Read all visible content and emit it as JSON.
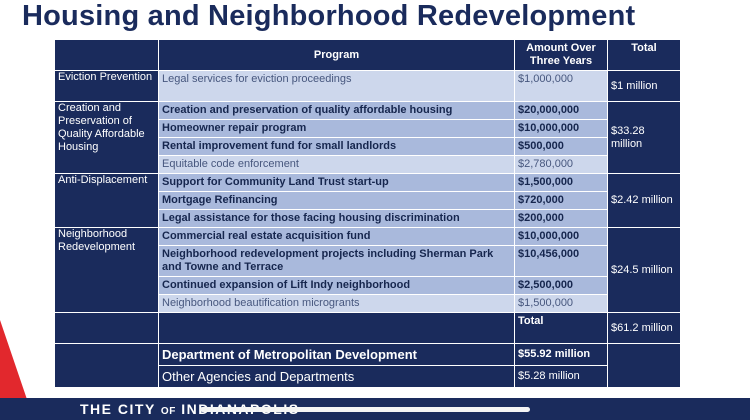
{
  "title": "Housing and Neighborhood Redevelopment",
  "table": {
    "headers": {
      "program": "Program",
      "amount": "Amount Over Three Years",
      "total": "Total"
    },
    "groups": [
      {
        "category": "Eviction Prevention",
        "total": "$1 million",
        "rows": [
          {
            "program": "Legal services for eviction proceedings",
            "amount": "$1,000,000"
          }
        ]
      },
      {
        "category": "Creation and Preservation of Quality Affordable Housing",
        "total": "$33.28 million",
        "rows": [
          {
            "program": "Creation and preservation of quality affordable housing",
            "amount": "$20,000,000"
          },
          {
            "program": "Homeowner repair program",
            "amount": "$10,000,000"
          },
          {
            "program": "Rental improvement fund for small landlords",
            "amount": "$500,000"
          },
          {
            "program": "Equitable code enforcement",
            "amount": "$2,780,000"
          }
        ]
      },
      {
        "category": "Anti-Displacement",
        "total": "$2.42 million",
        "rows": [
          {
            "program": "Support for Community Land Trust start-up",
            "amount": "$1,500,000"
          },
          {
            "program": "Mortgage Refinancing",
            "amount": "$720,000"
          },
          {
            "program": "Legal assistance for those facing housing discrimination",
            "amount": "$200,000"
          }
        ]
      },
      {
        "category": "Neighborhood Redevelopment",
        "total": "$24.5 million",
        "rows": [
          {
            "program": "Commercial real estate acquisition fund",
            "amount": "$10,000,000"
          },
          {
            "program": "Neighborhood redevelopment projects including Sherman Park and Towne and Terrace",
            "amount": "$10,456,000"
          },
          {
            "program": "Continued expansion of Lift Indy neighborhood",
            "amount": "$2,500,000"
          },
          {
            "program": "Neighborhood beautification microgrants",
            "amount": "$1,500,000"
          }
        ]
      }
    ],
    "summary": {
      "total_label": "Total",
      "total_value": "$61.2 million",
      "dept_name": "Department of Metropolitan Development",
      "dept_amount": "$55.92 million",
      "other_name": "Other Agencies and Departments",
      "other_amount": "$5.28 million"
    }
  },
  "footer": {
    "prefix": "THE CITY",
    "of": "OF",
    "suffix": "INDIANAPOLIS"
  },
  "colors": {
    "navy": "#1a2b5c",
    "bold_row": "#a9b9dc",
    "light_row": "#cdd7ec",
    "accent_red": "#e2282d"
  }
}
